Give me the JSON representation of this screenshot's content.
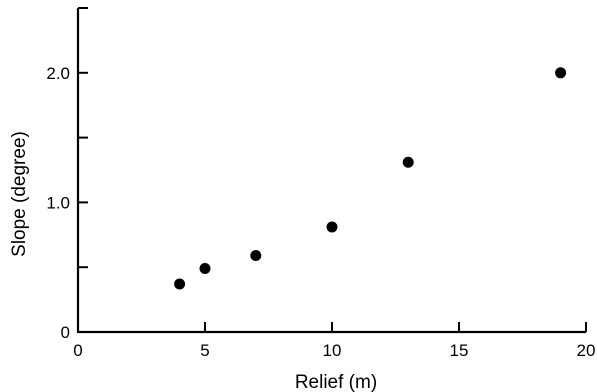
{
  "chart_data": {
    "type": "scatter",
    "title": "",
    "xlabel": "Relief (m)",
    "ylabel": "Slope (degree)",
    "xlim": [
      0,
      20
    ],
    "ylim": [
      0,
      2.5
    ],
    "x_ticks": [
      {
        "value": 0,
        "label": "0"
      },
      {
        "value": 5,
        "label": "5"
      },
      {
        "value": 10,
        "label": "10"
      },
      {
        "value": 15,
        "label": "15"
      },
      {
        "value": 20,
        "label": "20"
      }
    ],
    "y_ticks": [
      {
        "value": 0,
        "label": "0"
      },
      {
        "value": 0.5,
        "label": ""
      },
      {
        "value": 1.0,
        "label": "1.0"
      },
      {
        "value": 1.5,
        "label": ""
      },
      {
        "value": 2.0,
        "label": "2.0"
      },
      {
        "value": 2.5,
        "label": ""
      }
    ],
    "grid": false,
    "points": [
      {
        "x": 4,
        "y": 0.37
      },
      {
        "x": 5,
        "y": 0.49
      },
      {
        "x": 7,
        "y": 0.59
      },
      {
        "x": 10,
        "y": 0.81
      },
      {
        "x": 13,
        "y": 1.31
      },
      {
        "x": 19,
        "y": 2.0
      }
    ],
    "colors": {
      "axis": "#000000",
      "marker": "#000000"
    }
  }
}
